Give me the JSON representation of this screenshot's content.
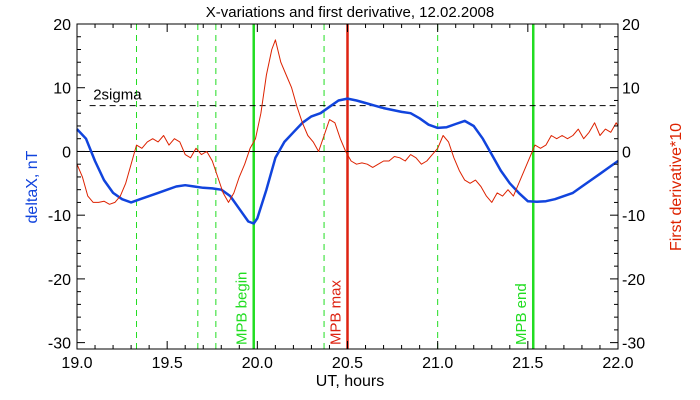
{
  "chart_data": {
    "type": "line",
    "title": "X-variations and first derivative, 12.02.2008",
    "xlabel": "UT, hours",
    "ylabel_left": "deltaX, nT",
    "ylabel_right": "First derivative*10",
    "xlim": [
      19.0,
      22.0
    ],
    "ylim": [
      -31,
      20
    ],
    "x_ticks": [
      "19.0",
      "19.5",
      "20.0",
      "20.5",
      "21.0",
      "21.5",
      "22.0"
    ],
    "y_ticks": [
      "-30",
      "-20",
      "-10",
      "0",
      "10",
      "20"
    ],
    "colors": {
      "deltaX": "#1144dd",
      "derivative": "#dd2200",
      "mpb_green": "#22dd22",
      "mpb_red": "#dd2211",
      "axes": "#000000"
    },
    "threshold": {
      "label": "2sigma",
      "value": 7.2,
      "style": "dashed"
    },
    "zero_line": 0,
    "grid": false,
    "legend": "none",
    "series": [
      {
        "name": "deltaX",
        "x": [
          19.0,
          19.05,
          19.1,
          19.15,
          19.2,
          19.25,
          19.3,
          19.35,
          19.4,
          19.45,
          19.5,
          19.55,
          19.6,
          19.65,
          19.7,
          19.75,
          19.8,
          19.85,
          19.9,
          19.95,
          19.98,
          20.0,
          20.05,
          20.1,
          20.15,
          20.2,
          20.25,
          20.3,
          20.35,
          20.4,
          20.45,
          20.5,
          20.55,
          20.6,
          20.65,
          20.7,
          20.75,
          20.8,
          20.85,
          20.9,
          20.95,
          21.0,
          21.05,
          21.1,
          21.15,
          21.2,
          21.25,
          21.3,
          21.35,
          21.4,
          21.45,
          21.5,
          21.55,
          21.6,
          21.65,
          21.7,
          21.75,
          21.8,
          21.85,
          21.9,
          21.95,
          22.0
        ],
        "values": [
          3.5,
          2.0,
          -1.5,
          -4.5,
          -6.5,
          -7.5,
          -8.0,
          -7.5,
          -7.0,
          -6.5,
          -6.0,
          -5.5,
          -5.3,
          -5.5,
          -5.7,
          -5.8,
          -6.0,
          -7.0,
          -9.0,
          -11.0,
          -11.3,
          -10.5,
          -6.0,
          -1.0,
          1.5,
          3.0,
          4.5,
          5.5,
          6.0,
          7.0,
          8.0,
          8.3,
          8.0,
          7.6,
          7.2,
          6.8,
          6.5,
          6.2,
          6.0,
          5.2,
          4.2,
          3.7,
          3.8,
          4.3,
          4.8,
          4.0,
          2.0,
          -0.5,
          -3.0,
          -5.0,
          -6.5,
          -7.8,
          -7.9,
          -7.8,
          -7.5,
          -7.0,
          -6.5,
          -5.5,
          -4.5,
          -3.5,
          -2.5,
          -1.5
        ]
      },
      {
        "name": "First derivative*10",
        "x": [
          19.0,
          19.03,
          19.06,
          19.09,
          19.12,
          19.15,
          19.18,
          19.21,
          19.24,
          19.27,
          19.3,
          19.33,
          19.36,
          19.39,
          19.42,
          19.45,
          19.48,
          19.51,
          19.54,
          19.57,
          19.6,
          19.63,
          19.66,
          19.69,
          19.72,
          19.75,
          19.78,
          19.81,
          19.84,
          19.87,
          19.9,
          19.93,
          19.96,
          19.99,
          20.02,
          20.05,
          20.08,
          20.1,
          20.13,
          20.16,
          20.19,
          20.22,
          20.25,
          20.28,
          20.31,
          20.34,
          20.37,
          20.4,
          20.43,
          20.46,
          20.49,
          20.52,
          20.55,
          20.58,
          20.61,
          20.64,
          20.67,
          20.7,
          20.73,
          20.76,
          20.79,
          20.82,
          20.85,
          20.88,
          20.91,
          20.94,
          20.97,
          21.0,
          21.03,
          21.06,
          21.09,
          21.12,
          21.15,
          21.18,
          21.21,
          21.24,
          21.27,
          21.3,
          21.33,
          21.36,
          21.39,
          21.42,
          21.45,
          21.48,
          21.51,
          21.54,
          21.57,
          21.6,
          21.63,
          21.66,
          21.69,
          21.72,
          21.75,
          21.78,
          21.81,
          21.84,
          21.87,
          21.9,
          21.93,
          21.96,
          21.99,
          22.0
        ],
        "values": [
          -2.0,
          -4.0,
          -7.0,
          -8.0,
          -8.0,
          -7.8,
          -8.3,
          -8.0,
          -7.0,
          -5.0,
          -2.0,
          1.0,
          0.5,
          1.5,
          2.0,
          1.5,
          2.5,
          1.0,
          2.0,
          1.5,
          -0.5,
          -1.0,
          0.5,
          -0.5,
          0.0,
          -1.5,
          -4.0,
          -6.5,
          -8.0,
          -6.5,
          -4.0,
          -2.0,
          0.5,
          2.0,
          6.0,
          12.0,
          16.0,
          17.5,
          14.0,
          12.0,
          10.0,
          7.0,
          4.5,
          2.5,
          1.5,
          0.0,
          2.5,
          5.0,
          4.5,
          2.0,
          0.0,
          -1.5,
          -2.0,
          -1.8,
          -2.0,
          -2.5,
          -2.0,
          -1.5,
          -1.5,
          -0.8,
          -1.0,
          -1.5,
          -0.5,
          -1.0,
          -2.0,
          -1.5,
          -0.5,
          0.5,
          2.5,
          1.5,
          -1.0,
          -3.0,
          -4.5,
          -5.0,
          -4.5,
          -5.5,
          -7.0,
          -8.0,
          -6.5,
          -7.0,
          -6.0,
          -7.0,
          -5.0,
          -3.0,
          -1.0,
          1.0,
          0.5,
          1.0,
          2.5,
          2.0,
          2.5,
          2.0,
          2.5,
          3.5,
          2.0,
          3.0,
          4.5,
          2.5,
          3.5,
          3.0,
          4.5,
          4.0
        ]
      }
    ],
    "vertical_lines": [
      {
        "x": 19.33,
        "style": "dashed",
        "color": "green",
        "label": ""
      },
      {
        "x": 19.67,
        "style": "dashed",
        "color": "green",
        "label": ""
      },
      {
        "x": 19.77,
        "style": "dashed",
        "color": "green",
        "label": ""
      },
      {
        "x": 19.98,
        "style": "solid",
        "color": "green",
        "label": "MPB begin"
      },
      {
        "x": 20.37,
        "style": "dashed",
        "color": "green",
        "label": ""
      },
      {
        "x": 20.5,
        "style": "solid",
        "color": "red",
        "label": "MPB max"
      },
      {
        "x": 21.0,
        "style": "dashed",
        "color": "green",
        "label": ""
      },
      {
        "x": 21.53,
        "style": "solid",
        "color": "green",
        "label": "MPB end"
      }
    ]
  }
}
